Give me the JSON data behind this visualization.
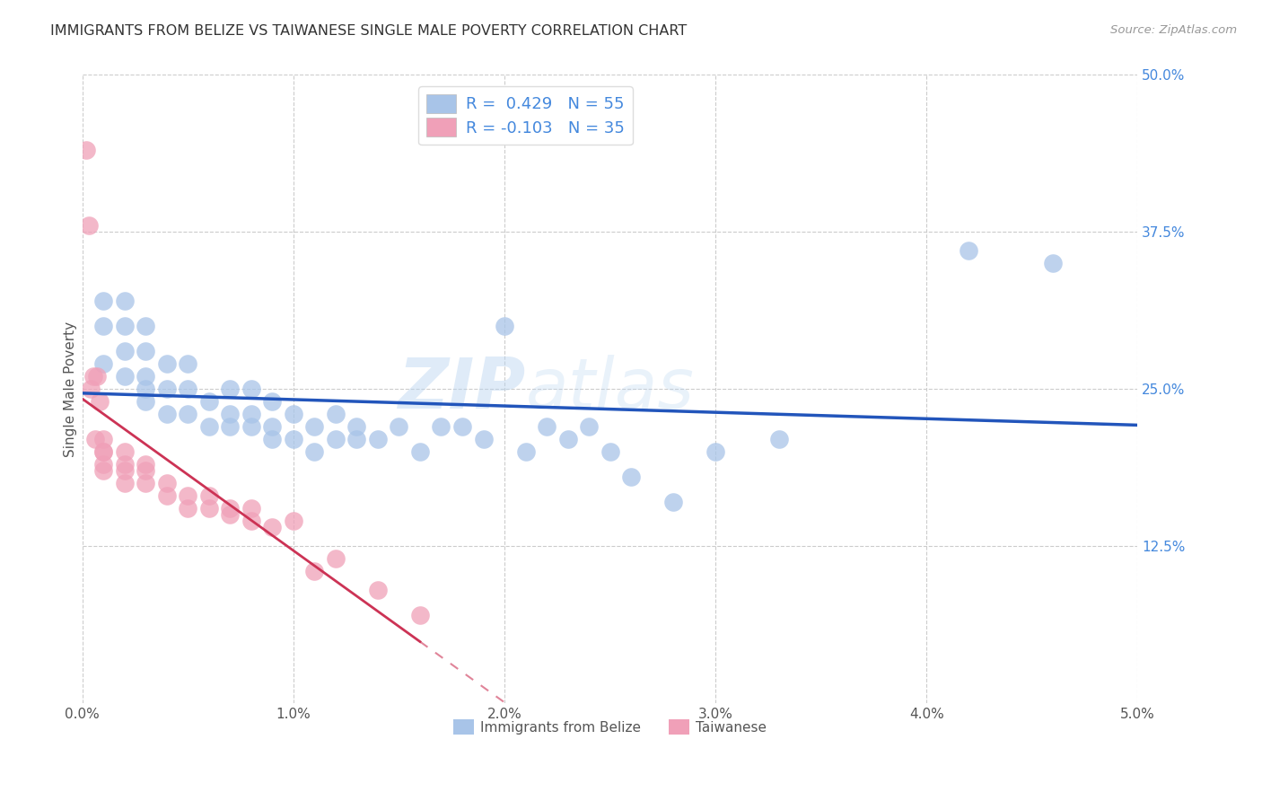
{
  "title": "IMMIGRANTS FROM BELIZE VS TAIWANESE SINGLE MALE POVERTY CORRELATION CHART",
  "source": "Source: ZipAtlas.com",
  "ylabel": "Single Male Poverty",
  "xlim": [
    0.0,
    0.05
  ],
  "ylim": [
    0.0,
    0.5
  ],
  "xtick_labels": [
    "0.0%",
    "1.0%",
    "2.0%",
    "3.0%",
    "4.0%",
    "5.0%"
  ],
  "xtick_vals": [
    0.0,
    0.01,
    0.02,
    0.03,
    0.04,
    0.05
  ],
  "ytick_labels_right": [
    "12.5%",
    "25.0%",
    "37.5%",
    "50.0%"
  ],
  "ytick_vals_right": [
    0.125,
    0.25,
    0.375,
    0.5
  ],
  "watermark": "ZIPatlas",
  "blue_color": "#a8c4e8",
  "pink_color": "#f0a0b8",
  "blue_line_color": "#2255bb",
  "pink_line_color": "#cc3355",
  "legend_blue_label": "R =  0.429   N = 55",
  "legend_pink_label": "R = -0.103   N = 35",
  "legend_bottom_blue": "Immigrants from Belize",
  "legend_bottom_pink": "Taiwanese",
  "blue_x": [
    0.001,
    0.001,
    0.001,
    0.002,
    0.002,
    0.002,
    0.002,
    0.003,
    0.003,
    0.003,
    0.003,
    0.003,
    0.004,
    0.004,
    0.004,
    0.005,
    0.005,
    0.005,
    0.006,
    0.006,
    0.007,
    0.007,
    0.007,
    0.008,
    0.008,
    0.008,
    0.009,
    0.009,
    0.009,
    0.01,
    0.01,
    0.011,
    0.011,
    0.012,
    0.012,
    0.013,
    0.013,
    0.014,
    0.015,
    0.016,
    0.017,
    0.018,
    0.019,
    0.02,
    0.021,
    0.022,
    0.023,
    0.024,
    0.025,
    0.026,
    0.028,
    0.03,
    0.033,
    0.042,
    0.046
  ],
  "blue_y": [
    0.27,
    0.3,
    0.32,
    0.26,
    0.28,
    0.3,
    0.32,
    0.24,
    0.25,
    0.26,
    0.28,
    0.3,
    0.23,
    0.25,
    0.27,
    0.23,
    0.25,
    0.27,
    0.22,
    0.24,
    0.22,
    0.23,
    0.25,
    0.22,
    0.23,
    0.25,
    0.21,
    0.22,
    0.24,
    0.21,
    0.23,
    0.2,
    0.22,
    0.21,
    0.23,
    0.21,
    0.22,
    0.21,
    0.22,
    0.2,
    0.22,
    0.22,
    0.21,
    0.3,
    0.2,
    0.22,
    0.21,
    0.22,
    0.2,
    0.18,
    0.16,
    0.2,
    0.21,
    0.36,
    0.35
  ],
  "pink_x": [
    0.0002,
    0.0003,
    0.0004,
    0.0005,
    0.0006,
    0.0007,
    0.0008,
    0.001,
    0.001,
    0.001,
    0.001,
    0.001,
    0.002,
    0.002,
    0.002,
    0.002,
    0.003,
    0.003,
    0.003,
    0.004,
    0.004,
    0.005,
    0.005,
    0.006,
    0.006,
    0.007,
    0.007,
    0.008,
    0.008,
    0.009,
    0.01,
    0.011,
    0.012,
    0.014,
    0.016
  ],
  "pink_y": [
    0.44,
    0.38,
    0.25,
    0.26,
    0.21,
    0.26,
    0.24,
    0.2,
    0.21,
    0.185,
    0.19,
    0.2,
    0.175,
    0.185,
    0.19,
    0.2,
    0.175,
    0.185,
    0.19,
    0.165,
    0.175,
    0.155,
    0.165,
    0.155,
    0.165,
    0.15,
    0.155,
    0.145,
    0.155,
    0.14,
    0.145,
    0.105,
    0.115,
    0.09,
    0.07
  ],
  "background_color": "#ffffff",
  "grid_color": "#cccccc",
  "title_color": "#333333",
  "axis_label_color": "#555555",
  "right_tick_color": "#4488dd"
}
